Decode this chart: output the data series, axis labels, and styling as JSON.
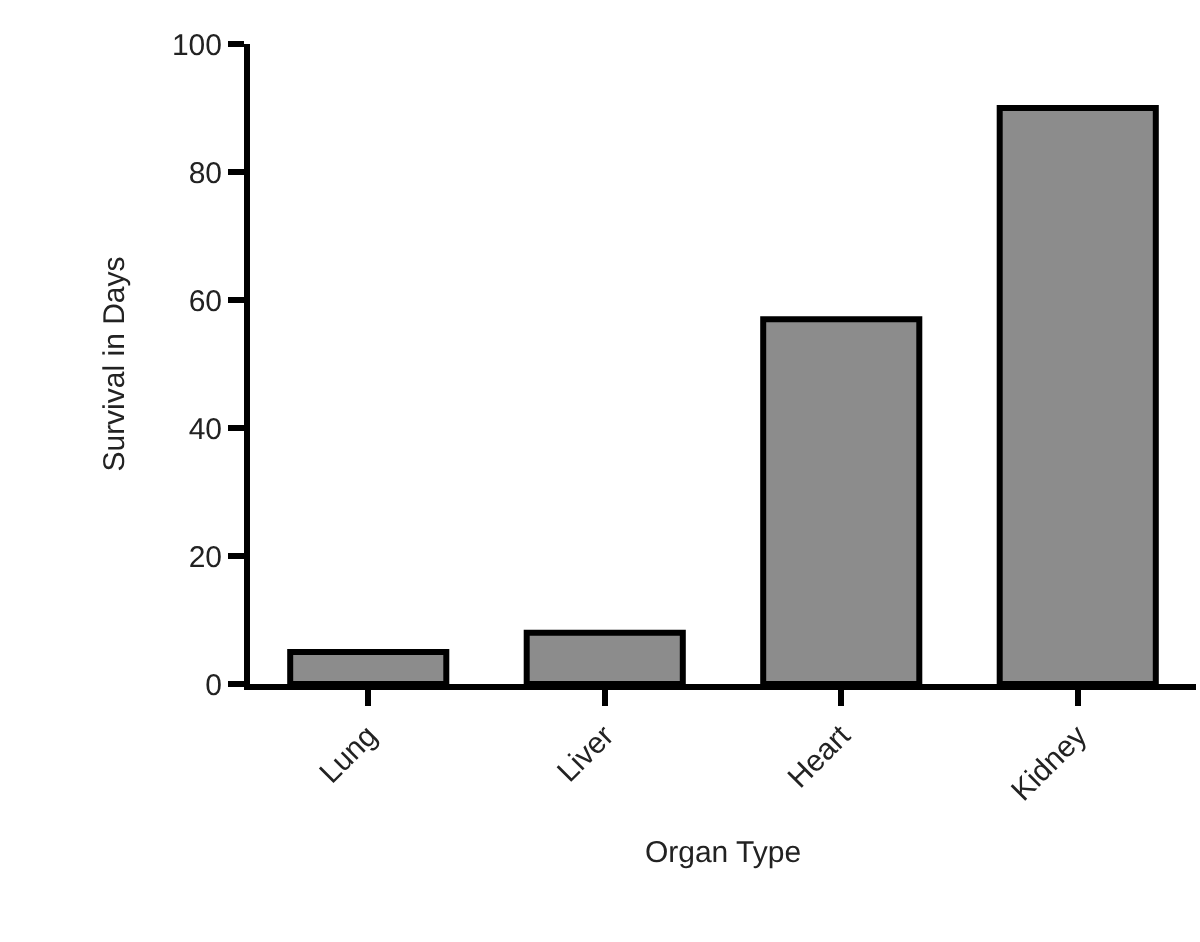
{
  "chart_data": {
    "type": "bar",
    "xlabel": "Organ Type",
    "ylabel": "Survival in Days",
    "categories": [
      "Lung",
      "Liver",
      "Heart",
      "Kidney"
    ],
    "values": [
      5,
      8,
      57,
      90
    ],
    "color": "#8c8c8c",
    "ylim": [
      0,
      100
    ],
    "yticks": [
      0,
      20,
      40,
      60,
      80,
      100
    ],
    "grid": false
  }
}
